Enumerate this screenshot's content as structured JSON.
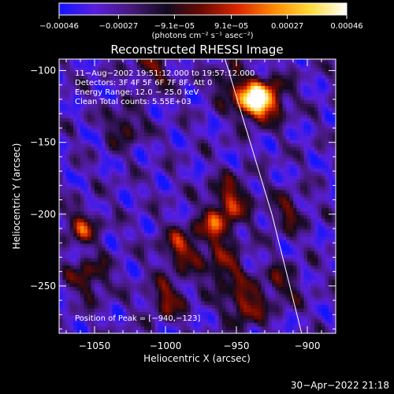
{
  "chart_data": {
    "type": "heatmap",
    "title": "Reconstructed RHESSI Image",
    "xlabel": "Heliocentric X (arcsec)",
    "ylabel": "Heliocentric Y (arcsec)",
    "xlim": [
      -1075,
      -880
    ],
    "ylim": [
      -283,
      -92
    ],
    "xticks": [
      -1050,
      -1000,
      -950,
      -900
    ],
    "xtick_labels": [
      "−1050",
      "−1000",
      "−950",
      "−900"
    ],
    "yticks": [
      -100,
      -150,
      -200,
      -250
    ],
    "ytick_labels": [
      "−100",
      "−150",
      "−200",
      "−250"
    ],
    "colorbar": {
      "range": [
        -0.00046,
        0.00046
      ],
      "tick_values": [
        -0.00046,
        -0.00027,
        -9.1e-05,
        9.1e-05,
        0.00027,
        0.00046
      ],
      "tick_labels": [
        "−0.00046",
        "−0.00027",
        "−9.1e−05",
        "9.1e−05",
        "0.00027",
        "0.00046"
      ],
      "unit_label": "(photons cm⁻² s⁻¹ asec⁻²)",
      "colors": [
        "#1414ff",
        "#5a1edc",
        "#46197a",
        "#120a1e",
        "#6e0a00",
        "#dc2800",
        "#ff8c00",
        "#ffdc3c",
        "#ffffff"
      ]
    },
    "annotations": [
      "11−Aug−2002 19:51:12.000 to 19:57:12.000",
      "Detectors: 3F 4F 5F 6F 7F 8F, Att 0",
      "Energy Range: 12.0 − 25.0 keV",
      "Clean     Total counts: 5.55E+03"
    ],
    "peak_label": "Position of Peak = [−940,−123]",
    "peak": [
      -940,
      -123
    ],
    "limb_line": [
      [
        -958,
        -92
      ],
      [
        -925,
        -200
      ],
      [
        -904,
        -283
      ]
    ],
    "emission_sources": [
      {
        "x": -940,
        "y": -123,
        "amp": 1.0,
        "r": 8
      },
      {
        "x": -930,
        "y": -120,
        "amp": 0.7,
        "r": 10
      },
      {
        "x": -956,
        "y": -110,
        "amp": 0.45,
        "r": 8
      },
      {
        "x": -955,
        "y": -190,
        "amp": 0.55,
        "r": 10
      },
      {
        "x": -965,
        "y": -210,
        "amp": 0.6,
        "r": 9
      },
      {
        "x": -960,
        "y": -240,
        "amp": 0.5,
        "r": 10
      },
      {
        "x": -945,
        "y": -265,
        "amp": 0.6,
        "r": 9
      },
      {
        "x": -990,
        "y": -225,
        "amp": 0.55,
        "r": 10
      },
      {
        "x": -1000,
        "y": -260,
        "amp": 0.5,
        "r": 9
      },
      {
        "x": -1060,
        "y": -210,
        "amp": 0.55,
        "r": 8
      },
      {
        "x": -1055,
        "y": -245,
        "amp": 0.45,
        "r": 10
      },
      {
        "x": -1030,
        "y": -140,
        "amp": 0.45,
        "r": 8
      },
      {
        "x": -1010,
        "y": -100,
        "amp": 0.4,
        "r": 9
      },
      {
        "x": -915,
        "y": -200,
        "amp": 0.4,
        "r": 9
      },
      {
        "x": -920,
        "y": -250,
        "amp": 0.35,
        "r": 10
      }
    ]
  },
  "footer": {
    "timestamp": "30−Apr−2022 21:18"
  }
}
